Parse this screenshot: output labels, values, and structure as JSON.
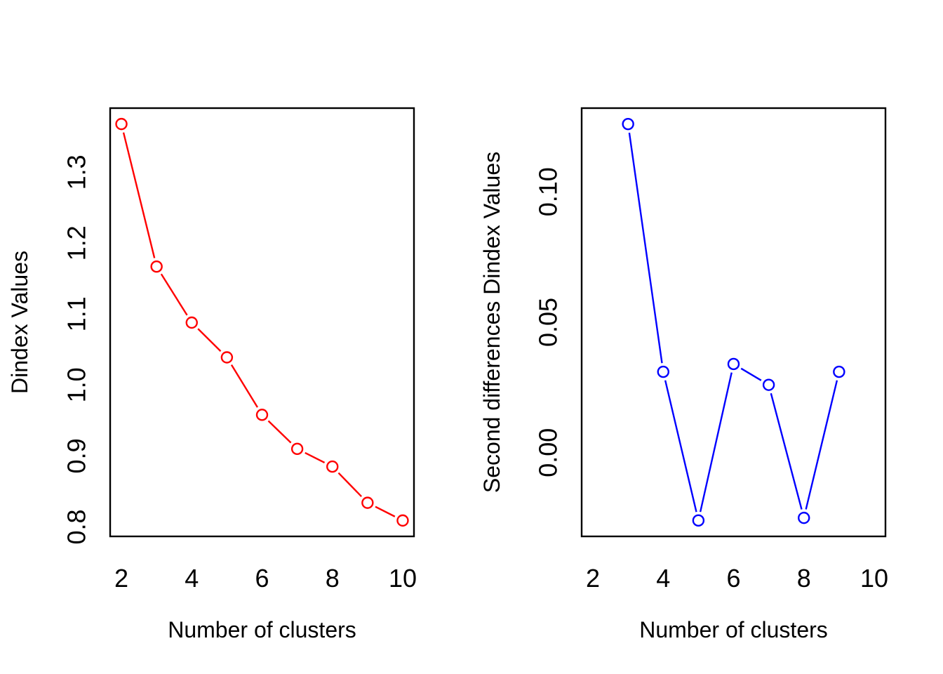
{
  "figure": {
    "background": "#ffffff",
    "description": "Two R base-graphics panels side by side"
  },
  "colors": {
    "dindex_series": "#ff0000",
    "second_diff_series": "#0000ff",
    "axis": "#000000"
  },
  "chart_data": [
    {
      "id": "dindex",
      "type": "line",
      "marker": "open-circle",
      "line_type": "points-joined-with-gaps",
      "series_color": "#ff0000",
      "title": "",
      "xlabel": "Number of clusters",
      "ylabel": "Dindex Values",
      "x": [
        2,
        3,
        4,
        5,
        6,
        7,
        8,
        9,
        10
      ],
      "y": [
        1.368,
        1.167,
        1.088,
        1.039,
        0.958,
        0.91,
        0.885,
        0.834,
        0.809
      ],
      "xticks": [
        2,
        4,
        6,
        8,
        10
      ],
      "xtick_labels": [
        "2",
        "4",
        "6",
        "8",
        "10"
      ],
      "yticks": [
        0.8,
        0.9,
        1.0,
        1.1,
        1.2,
        1.3
      ],
      "ytick_labels": [
        "0.8",
        "0.9",
        "1.0",
        "1.1",
        "1.2",
        "1.3"
      ],
      "xlim": [
        1.68,
        10.32
      ],
      "ylim": [
        0.7866,
        1.3904
      ],
      "grid": false,
      "legend": null
    },
    {
      "id": "second-differences",
      "type": "line",
      "marker": "open-circle",
      "line_type": "points-joined-with-gaps",
      "series_color": "#0000ff",
      "title": "",
      "xlabel": "Number of clusters",
      "ylabel": "Second differences Dindex Values",
      "x": [
        3,
        4,
        5,
        6,
        7,
        8,
        9
      ],
      "y": [
        0.126,
        0.031,
        -0.026,
        0.034,
        0.026,
        -0.025,
        0.031
      ],
      "xticks": [
        2,
        4,
        6,
        8,
        10
      ],
      "xtick_labels": [
        "2",
        "4",
        "6",
        "8",
        "10"
      ],
      "yticks": [
        0.0,
        0.05,
        0.1
      ],
      "ytick_labels": [
        "0.00",
        "0.05",
        "0.10"
      ],
      "xlim": [
        1.68,
        10.32
      ],
      "ylim": [
        -0.0321,
        0.1321
      ],
      "grid": false,
      "legend": null
    }
  ]
}
